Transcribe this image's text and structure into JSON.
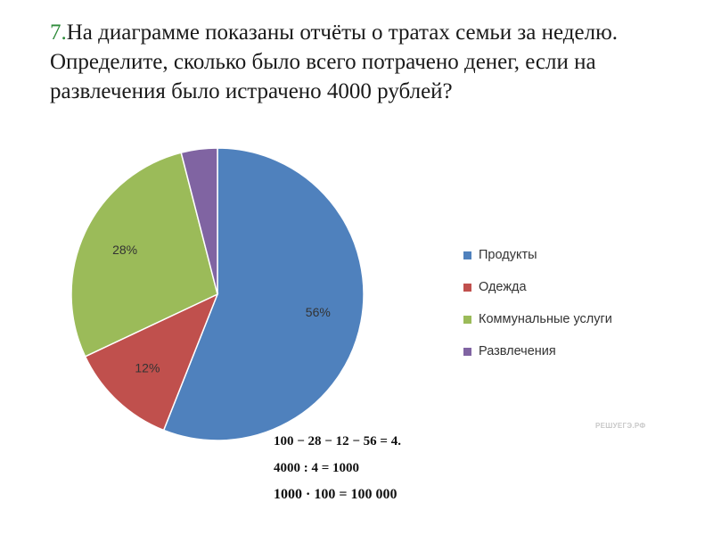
{
  "question": {
    "number": "7.",
    "text": "На диаграмме показаны отчёты о тратах семьи за неделю. Определите, сколько было всего потрачено денег, если на развлечения было истрачено 4000 рублей?"
  },
  "chart_data": {
    "type": "pie",
    "categories": [
      "Продукты",
      "Одежда",
      "Коммунальные услуги",
      "Развлечения"
    ],
    "values": [
      56,
      12,
      28,
      4
    ],
    "data_labels": [
      "56%",
      "12%",
      "28%",
      ""
    ],
    "colors": [
      "#4f81bd",
      "#c0504d",
      "#9bbb59",
      "#8064a2"
    ],
    "legend_position": "right",
    "start_angle_deg": 0,
    "direction": "clockwise"
  },
  "watermark": "РЕШУЕГЭ.РФ",
  "solution": [
    "100 − 28 − 12 − 56 = 4.",
    "4000 : 4 = 1000",
    "1000 · 100 = 100 000"
  ]
}
